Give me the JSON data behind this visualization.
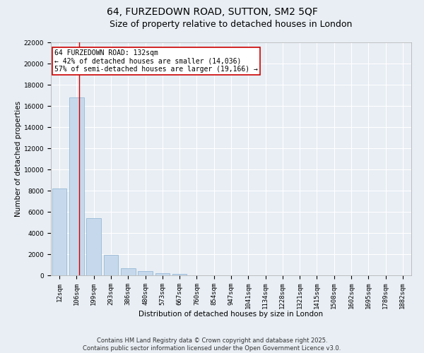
{
  "title": "64, FURZEDOWN ROAD, SUTTON, SM2 5QF",
  "subtitle": "Size of property relative to detached houses in London",
  "xlabel": "Distribution of detached houses by size in London",
  "ylabel": "Number of detached properties",
  "categories": [
    "12sqm",
    "106sqm",
    "199sqm",
    "293sqm",
    "386sqm",
    "480sqm",
    "573sqm",
    "667sqm",
    "760sqm",
    "854sqm",
    "947sqm",
    "1041sqm",
    "1134sqm",
    "1228sqm",
    "1321sqm",
    "1415sqm",
    "1508sqm",
    "1602sqm",
    "1695sqm",
    "1789sqm",
    "1882sqm"
  ],
  "values": [
    8200,
    16800,
    5400,
    1950,
    670,
    370,
    210,
    130,
    0,
    0,
    0,
    0,
    0,
    0,
    0,
    0,
    0,
    0,
    0,
    0,
    0
  ],
  "bar_color": "#c6d9ec",
  "bar_edge_color": "#8ab0d0",
  "background_color": "#e8eef4",
  "grid_color": "#ffffff",
  "vline_x": 1.15,
  "vline_color": "#cc0000",
  "annotation_text": "64 FURZEDOWN ROAD: 132sqm\n← 42% of detached houses are smaller (14,036)\n57% of semi-detached houses are larger (19,166) →",
  "annotation_box_color": "#ffffff",
  "annotation_box_edge_color": "#cc0000",
  "ylim": [
    0,
    22000
  ],
  "yticks": [
    0,
    2000,
    4000,
    6000,
    8000,
    10000,
    12000,
    14000,
    16000,
    18000,
    20000,
    22000
  ],
  "footer": "Contains HM Land Registry data © Crown copyright and database right 2025.\nContains public sector information licensed under the Open Government Licence v3.0.",
  "title_fontsize": 10,
  "subtitle_fontsize": 9,
  "axis_label_fontsize": 7.5,
  "tick_fontsize": 6.5,
  "annotation_fontsize": 7,
  "footer_fontsize": 6
}
